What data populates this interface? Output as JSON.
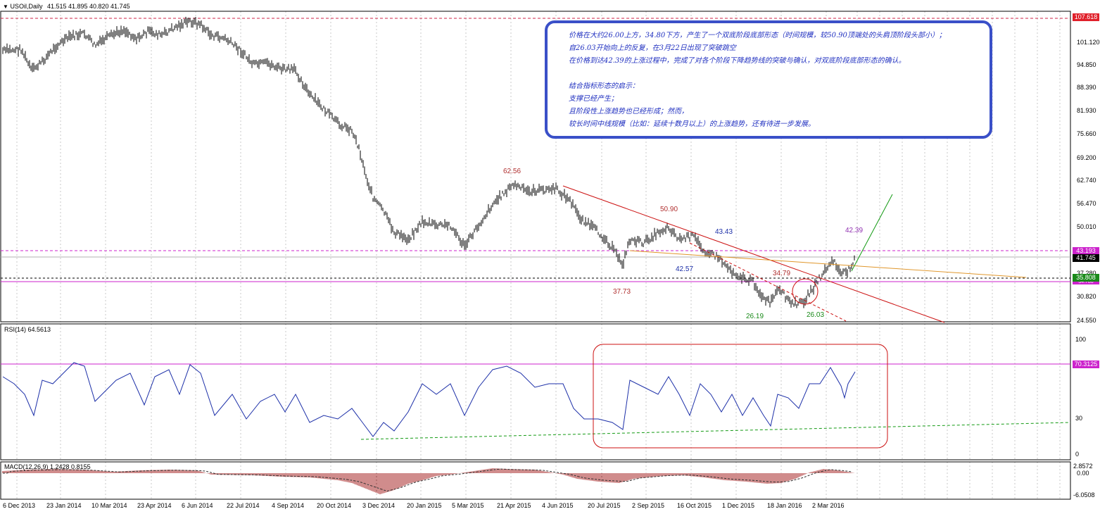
{
  "header": {
    "symbol_label": "USOil,Daily",
    "ohlc": "41.515 41.895 40.820 41.745"
  },
  "annotation": {
    "lines": [
      "价格在大约26.00上方，34.80下方，产生了一个双底阶段底部形态（时间规模，较50.90顶端处的头肩顶阶段头部小）；",
      "自26.03开始向上的反复，在3月22日出现了突破跳空",
      "在价格到达42.39的上涨过程中，完成了对各个阶段下降趋势线的突破与确认，对双底阶段底部形态的确认。",
      "",
      "结合指标形态的启示：",
      "支撑已经产生；",
      "且阶段性上涨趋势也已经形成；然而，",
      "较长时间中线规模（比如：延续十数月以上）的上涨趋势，还有待进一步发展。"
    ]
  },
  "level_labels": {
    "l6256": "62.56",
    "l5090": "50.90",
    "l4343": "43.43",
    "l4257": "42.57",
    "l3479": "34.79",
    "l3773": "37.73",
    "l2619": "26.19",
    "l2603": "26.03",
    "l4239": "42.39"
  },
  "price_axis": [
    "101.120",
    "94.850",
    "88.390",
    "81.930",
    "75.660",
    "69.200",
    "62.740",
    "56.470",
    "50.010",
    "37.280",
    "30.820",
    "24.550"
  ],
  "price_tags": {
    "top": "107.618",
    "upper_line": "43.193",
    "current": "41.745",
    "lower_line": "35.808",
    "lower_line_hidden": "34.786"
  },
  "rsi": {
    "title": "RSI(14) 64.5613",
    "axis": [
      "100",
      "30",
      "0"
    ],
    "level_tag": "70.3125"
  },
  "macd": {
    "title": "MACD(12,26,9) 1.2428 0.8155",
    "axis": [
      "2.8572",
      "0.00",
      "-6.0508"
    ]
  },
  "time_axis": [
    "6 Dec 2013",
    "23 Jan 2014",
    "10 Mar 2014",
    "23 Apr 2014",
    "6 Jun 2014",
    "22 Jul 2014",
    "4 Sep 2014",
    "20 Oct 2014",
    "3 Dec 2014",
    "20 Jan 2015",
    "5 Mar 2015",
    "21 Apr 2015",
    "4 Jun 2015",
    "20 Jul 2015",
    "2 Sep 2015",
    "16 Oct 2015",
    "1 Dec 2015",
    "18 Jan 2016",
    "2 Mar 2016"
  ],
  "colors": {
    "price_line": "#cc2244",
    "magenta": "#cc22cc",
    "tag_red": "#e0202a",
    "tag_green": "#1a8a1a",
    "rsi_line": "#1c2fa8",
    "trend_red": "#cc1111",
    "trend_orange": "#e0962a",
    "trend_green": "#139a13",
    "annotation_border": "#3a50c8"
  }
}
